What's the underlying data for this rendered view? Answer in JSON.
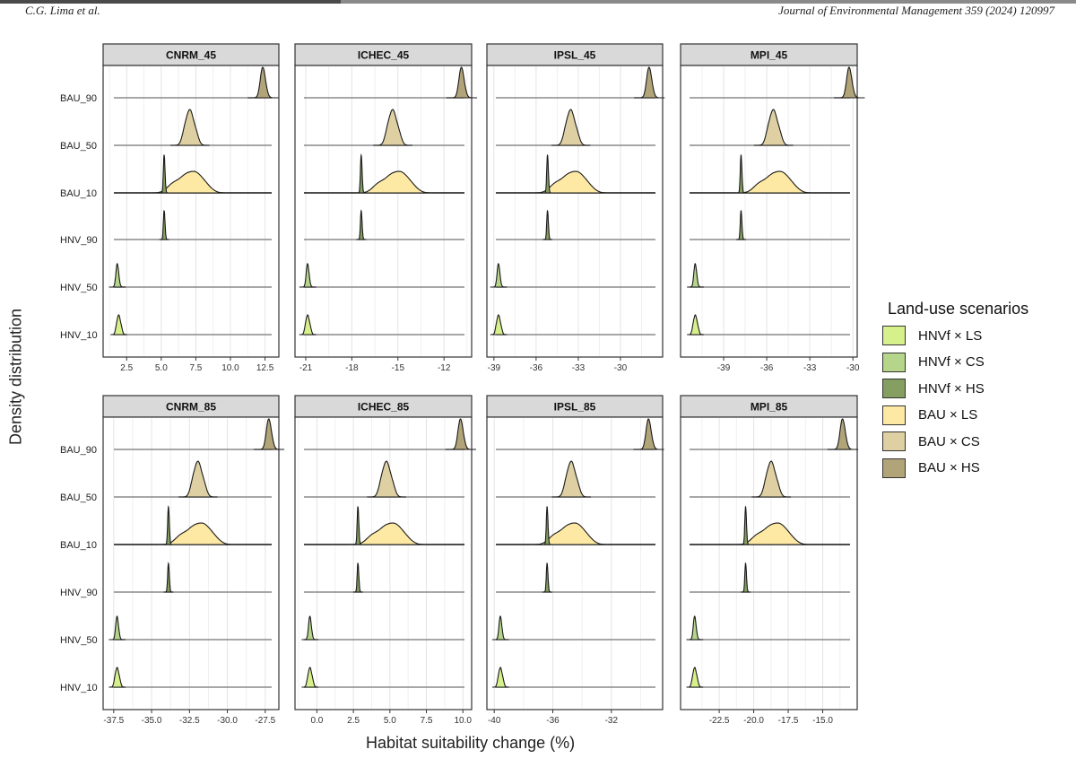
{
  "header": {
    "left": "C.G. Lima et al.",
    "right": "Journal of Environmental Management 359 (2024) 120997"
  },
  "legend": {
    "title": "Land-use scenarios",
    "items": [
      {
        "label": "HNVf × LS",
        "color": "#d6f08c"
      },
      {
        "label": "HNVf × CS",
        "color": "#b5d58a"
      },
      {
        "label": "HNVf × HS",
        "color": "#859e62"
      },
      {
        "label": "BAU × LS",
        "color": "#fde9a4"
      },
      {
        "label": "BAU × CS",
        "color": "#ded0a2"
      },
      {
        "label": "BAU × HS",
        "color": "#b2a479"
      }
    ]
  },
  "chart_data": {
    "type": "ridgeline density (faceted)",
    "xlabel": "Habitat suitability change (%)",
    "ylabel": "Density distribution",
    "rows": [
      "BAU_90",
      "BAU_50",
      "BAU_10",
      "HNV_90",
      "HNV_50",
      "HNV_10"
    ],
    "row_scenarios": [
      "BAU × HS",
      "BAU × CS",
      "BAU × LS + HNVf × HS",
      "HNVf × HS",
      "HNVf × CS",
      "HNVf × LS"
    ],
    "panels": [
      {
        "title": "CNRM_45",
        "xlim": [
          0.8,
          13.5
        ],
        "ticks": [
          2.5,
          5.0,
          7.5,
          10.0,
          12.5
        ],
        "tick_labels": [
          "2.5",
          "5.0",
          "7.5",
          "10.0",
          "12.5"
        ],
        "peaks": {
          "HNV_10": 1.9,
          "HNV_50": 1.8,
          "HNV_90": 5.2,
          "BAU_10": 6.8,
          "BAU_50": 7.0,
          "BAU_90": 12.3
        }
      },
      {
        "title": "ICHEC_45",
        "xlim": [
          -21.7,
          -10.2
        ],
        "ticks": [
          -21,
          -18,
          -15,
          -12
        ],
        "tick_labels": [
          "-21",
          "-18",
          "-15",
          "-12"
        ],
        "peaks": {
          "HNV_10": -20.9,
          "HNV_50": -20.9,
          "HNV_90": -17.4,
          "BAU_10": -15.4,
          "BAU_50": -15.4,
          "BAU_90": -10.9
        }
      },
      {
        "title": "IPSL_45",
        "xlim": [
          -39.5,
          -27.0
        ],
        "ticks": [
          -39,
          -36,
          -33,
          -30
        ],
        "tick_labels": [
          "-39",
          "-36",
          "-33",
          "-30"
        ],
        "peaks": {
          "HNV_10": -38.7,
          "HNV_50": -38.7,
          "HNV_90": -35.2,
          "BAU_10": -33.7,
          "BAU_50": -33.6,
          "BAU_90": -28.0
        }
      },
      {
        "title": "MPI_45",
        "xlim": [
          -42.0,
          -29.7
        ],
        "ticks": [
          -39,
          -36,
          -33,
          -30
        ],
        "tick_labels": [
          "-39",
          "-36",
          "-33",
          "-30"
        ],
        "peaks": {
          "HNV_10": -41.0,
          "HNV_50": -41.0,
          "HNV_90": -37.8,
          "BAU_10": -35.6,
          "BAU_50": -35.6,
          "BAU_90": -30.3
        }
      },
      {
        "title": "CNRM_85",
        "xlim": [
          -38.2,
          -26.6
        ],
        "ticks": [
          -37.5,
          -35.0,
          -32.5,
          -30.0,
          -27.5
        ],
        "tick_labels": [
          "-37.5",
          "-35.0",
          "-32.5",
          "-30.0",
          "-27.5"
        ],
        "peaks": {
          "HNV_10": -37.3,
          "HNV_50": -37.3,
          "HNV_90": -33.9,
          "BAU_10": -32.2,
          "BAU_50": -32.0,
          "BAU_90": -27.3
        }
      },
      {
        "title": "ICHEC_85",
        "xlim": [
          -1.5,
          10.6
        ],
        "ticks": [
          0.0,
          2.5,
          5.0,
          7.5,
          10.0
        ],
        "tick_labels": [
          "0.0",
          "2.5",
          "5.0",
          "7.5",
          "10.0"
        ],
        "peaks": {
          "HNV_10": -0.5,
          "HNV_50": -0.5,
          "HNV_90": 2.8,
          "BAU_10": 4.7,
          "BAU_50": 4.7,
          "BAU_90": 9.8
        }
      },
      {
        "title": "IPSL_85",
        "xlim": [
          -40.5,
          -28.5
        ],
        "ticks": [
          -40,
          -36,
          -32
        ],
        "tick_labels": [
          "-40",
          "-36",
          "-32"
        ],
        "peaks": {
          "HNV_10": -39.6,
          "HNV_50": -39.6,
          "HNV_90": -36.4,
          "BAU_10": -35.0,
          "BAU_50": -34.8,
          "BAU_90": -29.5
        }
      },
      {
        "title": "MPI_85",
        "xlim": [
          -25.3,
          -12.5
        ],
        "ticks": [
          -22.5,
          -20.0,
          -17.5,
          -15.0
        ],
        "tick_labels": [
          "-22.5",
          "-20.0",
          "-17.5",
          "-15.0"
        ],
        "peaks": {
          "HNV_10": -24.3,
          "HNV_50": -24.3,
          "HNV_90": -20.6,
          "BAU_10": -18.8,
          "BAU_50": -18.8,
          "BAU_90": -13.6
        }
      }
    ]
  }
}
